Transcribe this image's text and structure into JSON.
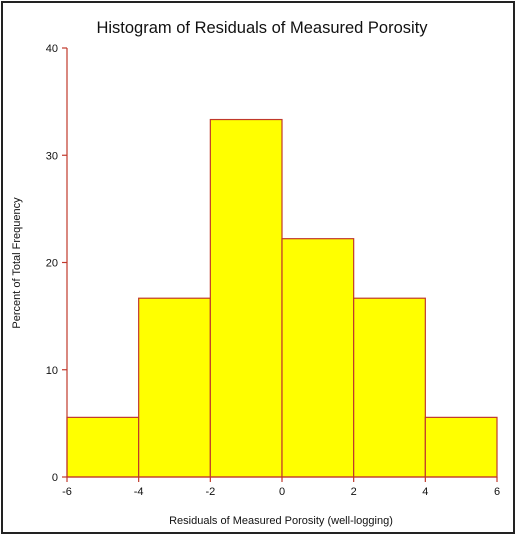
{
  "chart_data": {
    "type": "bar",
    "title": "Histogram of Residuals of Measured Porosity",
    "xlabel": "Residuals of Measured Porosity (well-logging)",
    "ylabel": "Percent of Total Frequency",
    "bins": [
      {
        "from": -6,
        "to": -4,
        "value": 5.56
      },
      {
        "from": -4,
        "to": -2,
        "value": 16.67
      },
      {
        "from": -2,
        "to": 0,
        "value": 33.33
      },
      {
        "from": 0,
        "to": 2,
        "value": 22.22
      },
      {
        "from": 2,
        "to": 4,
        "value": 16.67
      },
      {
        "from": 4,
        "to": 6,
        "value": 5.56
      }
    ],
    "xlim": [
      -6,
      6
    ],
    "ylim": [
      0,
      40
    ],
    "xticks": [
      "-6",
      "-4",
      "-2",
      "0",
      "2",
      "4",
      "6"
    ],
    "yticks": [
      "0",
      "10",
      "20",
      "30",
      "40"
    ],
    "grid": false,
    "bar_fill": "#ffff00",
    "bar_edge": "#c0392b",
    "axis_color": "#c0392b"
  }
}
